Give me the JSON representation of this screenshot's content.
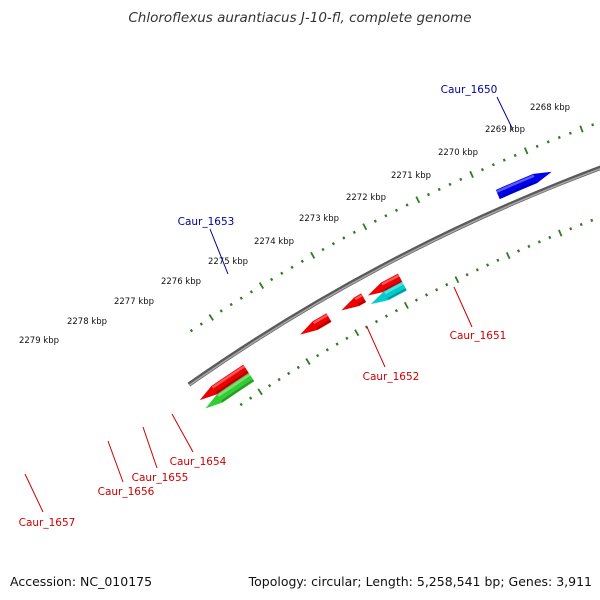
{
  "title": "Chloroflexus aurantiacus J-10-fl, complete genome",
  "footer": {
    "accession": "Accession: NC_010175",
    "summary": "Topology: circular; Length: 5,258,541 bp; Genes: 3,911"
  },
  "colors": {
    "backbone": "#808080",
    "ticks": "#2e7d20",
    "forward_gene": "#0000ee",
    "reverse_gene": "#ee0000",
    "cds": "#33cc33",
    "other_feature": "#00cccc",
    "forward_label": "#000099",
    "reverse_label": "#cc0000"
  },
  "scale": {
    "labels": [
      "2268 kbp",
      "2269 kbp",
      "2270 kbp",
      "2271 kbp",
      "2272 kbp",
      "2273 kbp",
      "2274 kbp",
      "2275 kbp",
      "2276 kbp",
      "2277 kbp",
      "2278 kbp",
      "2279 kbp"
    ]
  },
  "genes": [
    {
      "name": "Caur_1650",
      "strand": "forward"
    },
    {
      "name": "Caur_1651",
      "strand": "reverse"
    },
    {
      "name": "Caur_1652",
      "strand": "reverse"
    },
    {
      "name": "Caur_1653",
      "strand": "forward"
    },
    {
      "name": "Caur_1654",
      "strand": "reverse"
    },
    {
      "name": "Caur_1655",
      "strand": "reverse"
    },
    {
      "name": "Caur_1656",
      "strand": "reverse"
    },
    {
      "name": "Caur_1657",
      "strand": "reverse"
    }
  ]
}
